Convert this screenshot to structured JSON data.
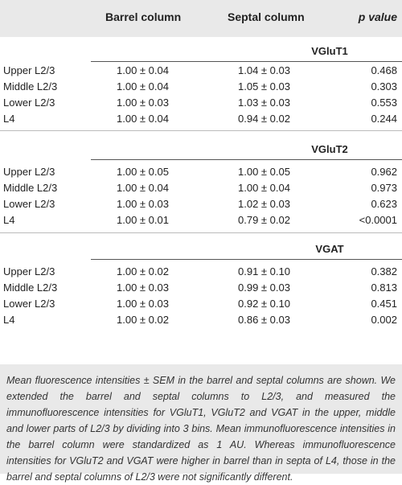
{
  "header": {
    "col1": "Barrel column",
    "col2": "Septal column",
    "col3": "p value"
  },
  "sections": [
    {
      "title": "VGluT1",
      "rows": [
        {
          "label": "Upper L2/3",
          "barrel": "1.00 ± 0.04",
          "septal": "1.04 ± 0.03",
          "p": "0.468"
        },
        {
          "label": "Middle L2/3",
          "barrel": "1.00 ± 0.04",
          "septal": "1.05 ± 0.03",
          "p": "0.303"
        },
        {
          "label": "Lower L2/3",
          "barrel": "1.00 ± 0.03",
          "septal": "1.03 ± 0.03",
          "p": "0.553"
        },
        {
          "label": "L4",
          "barrel": "1.00 ± 0.04",
          "septal": "0.94 ± 0.02",
          "p": "0.244"
        }
      ]
    },
    {
      "title": "VGluT2",
      "rows": [
        {
          "label": "Upper L2/3",
          "barrel": "1.00 ± 0.05",
          "septal": "1.00 ± 0.05",
          "p": "0.962"
        },
        {
          "label": "Middle L2/3",
          "barrel": "1.00 ± 0.04",
          "septal": "1.00 ± 0.04",
          "p": "0.973"
        },
        {
          "label": "Lower L2/3",
          "barrel": "1.00 ± 0.03",
          "septal": "1.02 ± 0.03",
          "p": "0.623"
        },
        {
          "label": "L4",
          "barrel": "1.00 ± 0.01",
          "septal": "0.79 ± 0.02",
          "p": "<0.0001"
        }
      ]
    },
    {
      "title": "VGAT",
      "rows": [
        {
          "label": "Upper L2/3",
          "barrel": "1.00 ± 0.02",
          "septal": "0.91 ± 0.10",
          "p": "0.382"
        },
        {
          "label": "Middle L2/3",
          "barrel": "1.00 ± 0.03",
          "septal": "0.99 ± 0.03",
          "p": "0.813"
        },
        {
          "label": "Lower L2/3",
          "barrel": "1.00 ± 0.03",
          "septal": "0.92 ± 0.10",
          "p": "0.451"
        },
        {
          "label": "L4",
          "barrel": "1.00 ± 0.02",
          "septal": "0.86 ± 0.03",
          "p": "0.002"
        }
      ]
    }
  ],
  "footnote": "Mean fluorescence intensities ± SEM in the barrel and septal columns are shown. We extended the barrel and septal columns to L2/3, and measured the immunofluorescence intensities for VGluT1, VGluT2 and VGAT in the upper, middle and lower parts of L2/3 by dividing into 3 bins. Mean immunofluorescence intensities in the barrel column were standardized as 1 AU. Whereas immunofluorescence intensities for VGluT2 and VGAT were higher in barrel than in septa of L4, those in the barrel and septal columns of L2/3 were not significantly different."
}
